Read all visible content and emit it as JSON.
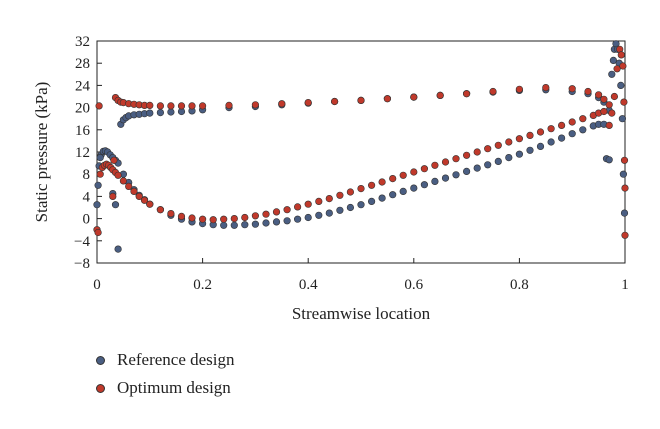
{
  "chart_data": {
    "type": "scatter",
    "xlabel": "Streamwise location",
    "ylabel": "Static pressure (kPa)",
    "xlim": [
      0,
      1
    ],
    "ylim": [
      -8,
      32
    ],
    "xticks": [
      "0",
      "0.2",
      "0.4",
      "0.6",
      "0.8",
      "1"
    ],
    "xtick_values": [
      0,
      0.2,
      0.4,
      0.6,
      0.8,
      1
    ],
    "yticks": [
      "−8",
      "−4",
      "0",
      "4",
      "8",
      "12",
      "16",
      "20",
      "24",
      "28",
      "32"
    ],
    "ytick_values": [
      -8,
      -4,
      0,
      4,
      8,
      12,
      16,
      20,
      24,
      28,
      32
    ],
    "grid": false,
    "legend_position": "bottom-left",
    "series": [
      {
        "name": "Reference design",
        "color": "#4a5e82",
        "upper": {
          "x": [
            0.045,
            0.05,
            0.055,
            0.06,
            0.07,
            0.08,
            0.09,
            0.1,
            0.12,
            0.14,
            0.16,
            0.18,
            0.2,
            0.25,
            0.3,
            0.35,
            0.4,
            0.45,
            0.5,
            0.55,
            0.6,
            0.65,
            0.7,
            0.75,
            0.8,
            0.85,
            0.9,
            0.93,
            0.95,
            0.96,
            0.97
          ],
          "y": [
            17,
            17.8,
            18.2,
            18.5,
            18.7,
            18.8,
            18.9,
            19,
            19.1,
            19.2,
            19.3,
            19.4,
            19.6,
            20,
            20.2,
            20.5,
            20.8,
            21.1,
            21.3,
            21.6,
            21.9,
            22.2,
            22.5,
            22.8,
            23.1,
            23.2,
            22.9,
            22.5,
            21.8,
            21,
            19.5
          ]
        },
        "lower": {
          "x": [
            0.008,
            0.012,
            0.016,
            0.02,
            0.025,
            0.03,
            0.035,
            0.04,
            0.05,
            0.06,
            0.07,
            0.08,
            0.09,
            0.1,
            0.12,
            0.14,
            0.16,
            0.18,
            0.2,
            0.22,
            0.24,
            0.26,
            0.28,
            0.3,
            0.32,
            0.34,
            0.36,
            0.38,
            0.4,
            0.42,
            0.44,
            0.46,
            0.48,
            0.5,
            0.52,
            0.54,
            0.56,
            0.58,
            0.6,
            0.62,
            0.64,
            0.66,
            0.68,
            0.7,
            0.72,
            0.74,
            0.76,
            0.78,
            0.8,
            0.82,
            0.84,
            0.86,
            0.88,
            0.9,
            0.92,
            0.94,
            0.95,
            0.96
          ],
          "y": [
            11.5,
            12.1,
            12.2,
            12,
            11.5,
            11,
            10.5,
            10,
            8,
            6.5,
            5.2,
            4.2,
            3.4,
            2.6,
            1.6,
            0.6,
            -0.1,
            -0.6,
            -0.9,
            -1.1,
            -1.2,
            -1.2,
            -1.1,
            -1,
            -0.8,
            -0.6,
            -0.4,
            -0.1,
            0.2,
            0.6,
            1,
            1.5,
            2,
            2.5,
            3.1,
            3.7,
            4.3,
            4.9,
            5.5,
            6.1,
            6.7,
            7.3,
            7.9,
            8.5,
            9.1,
            9.7,
            10.3,
            11,
            11.6,
            12.3,
            13,
            13.8,
            14.5,
            15.3,
            16,
            16.7,
            17,
            17
          ]
        },
        "leading_edge": {
          "x": [
            0.0,
            0.002,
            0.004,
            0.006,
            0.03,
            0.035,
            0.04
          ],
          "y": [
            2.5,
            6,
            9.5,
            11,
            4.5,
            2.5,
            -5.5
          ]
        },
        "trailing_edge": {
          "x": [
            0.965,
            0.97,
            0.975,
            0.978,
            0.98,
            0.983,
            0.986,
            0.989,
            0.992,
            0.995,
            0.997,
            0.999
          ],
          "y": [
            10.8,
            10.6,
            26,
            28.5,
            30.5,
            31.5,
            30.5,
            28,
            24,
            18,
            8,
            1
          ]
        }
      },
      {
        "name": "Optimum design",
        "color": "#c0392b",
        "upper": {
          "x": [
            0.035,
            0.04,
            0.045,
            0.05,
            0.06,
            0.07,
            0.08,
            0.09,
            0.1,
            0.12,
            0.14,
            0.16,
            0.18,
            0.2,
            0.25,
            0.3,
            0.35,
            0.4,
            0.45,
            0.5,
            0.55,
            0.6,
            0.65,
            0.7,
            0.75,
            0.8,
            0.85,
            0.9,
            0.93,
            0.95,
            0.96,
            0.97
          ],
          "y": [
            21.8,
            21.3,
            21,
            20.9,
            20.7,
            20.6,
            20.5,
            20.4,
            20.4,
            20.3,
            20.3,
            20.3,
            20.3,
            20.3,
            20.4,
            20.5,
            20.7,
            20.9,
            21.1,
            21.3,
            21.6,
            21.9,
            22.2,
            22.5,
            22.9,
            23.3,
            23.6,
            23.4,
            22.9,
            22.3,
            21.5,
            20.5
          ]
        },
        "lower": {
          "x": [
            0.006,
            0.01,
            0.014,
            0.018,
            0.022,
            0.026,
            0.03,
            0.035,
            0.04,
            0.05,
            0.06,
            0.07,
            0.08,
            0.09,
            0.1,
            0.12,
            0.14,
            0.16,
            0.18,
            0.2,
            0.22,
            0.24,
            0.26,
            0.28,
            0.3,
            0.32,
            0.34,
            0.36,
            0.38,
            0.4,
            0.42,
            0.44,
            0.46,
            0.48,
            0.5,
            0.52,
            0.54,
            0.56,
            0.58,
            0.6,
            0.62,
            0.64,
            0.66,
            0.68,
            0.7,
            0.72,
            0.74,
            0.76,
            0.78,
            0.8,
            0.82,
            0.84,
            0.86,
            0.88,
            0.9,
            0.92,
            0.94,
            0.95,
            0.96,
            0.97
          ],
          "y": [
            8,
            9.2,
            9.6,
            9.8,
            9.6,
            9.2,
            8.8,
            8.3,
            7.8,
            6.8,
            5.8,
            4.9,
            4,
            3.3,
            2.6,
            1.6,
            0.9,
            0.4,
            0.1,
            -0.1,
            -0.2,
            -0.1,
            0,
            0.2,
            0.5,
            0.8,
            1.2,
            1.6,
            2.1,
            2.6,
            3.1,
            3.6,
            4.2,
            4.8,
            5.4,
            6,
            6.6,
            7.2,
            7.8,
            8.4,
            9,
            9.6,
            10.2,
            10.8,
            11.4,
            12,
            12.6,
            13.2,
            13.8,
            14.4,
            15,
            15.6,
            16.2,
            16.8,
            17.4,
            18,
            18.6,
            19,
            19.3,
            16.8
          ]
        },
        "leading_edge": {
          "x": [
            0.0,
            0.002,
            0.004,
            0.03,
            0.032
          ],
          "y": [
            -2,
            -2.5,
            20.3,
            4,
            10.5
          ]
        },
        "trailing_edge": {
          "x": [
            0.975,
            0.98,
            0.985,
            0.99,
            0.993,
            0.996,
            0.998,
            0.999,
            1.0,
            1.0
          ],
          "y": [
            19,
            22,
            27,
            30.5,
            29.5,
            27.5,
            21,
            10.5,
            5.5,
            -3
          ]
        }
      }
    ]
  }
}
